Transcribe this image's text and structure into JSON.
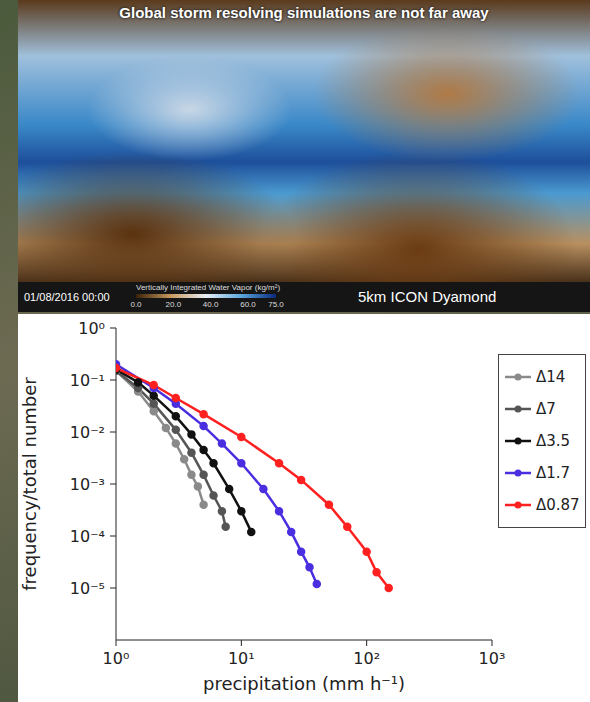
{
  "image_panel": {
    "title": "Global storm resolving simulations are not far away",
    "timestamp": "01/08/2016 00:00",
    "colorbar_label": "Vertically Integrated Water Vapor (kg/m²)",
    "colorbar_range": [
      0,
      75
    ],
    "colorbar_ticks": [
      {
        "value": 0,
        "label": "0.0"
      },
      {
        "value": 20,
        "label": "20.0"
      },
      {
        "value": 40,
        "label": "40.0"
      },
      {
        "value": 60,
        "label": "60.0"
      },
      {
        "value": 75,
        "label": "75.0"
      }
    ],
    "caption": "5km ICON Dyamond"
  },
  "chart_data": {
    "type": "line",
    "log": true,
    "marker": "circle",
    "legend": "right",
    "xlabel": "precipitation (mm h⁻¹)",
    "ylabel": "frequency/total number",
    "xlim": [
      1,
      1000
    ],
    "ylim": [
      1e-06,
      1
    ],
    "xticks": [
      {
        "value": 1,
        "label": "10⁰"
      },
      {
        "value": 10,
        "label": "10¹"
      },
      {
        "value": 100,
        "label": "10²"
      },
      {
        "value": 1000,
        "label": "10³"
      }
    ],
    "yticks": [
      {
        "value": 1e-05,
        "label": "10⁻⁵"
      },
      {
        "value": 0.0001,
        "label": "10⁻⁴"
      },
      {
        "value": 0.001,
        "label": "10⁻³"
      },
      {
        "value": 0.01,
        "label": "10⁻²"
      },
      {
        "value": 0.1,
        "label": "10⁻¹"
      },
      {
        "value": 1,
        "label": "10⁰"
      }
    ],
    "series": [
      {
        "name": "Δ14",
        "color": "#8a8a8a",
        "x": [
          1,
          1.5,
          2,
          2.5,
          3,
          3.5,
          4,
          4.5,
          5
        ],
        "values": [
          0.15,
          0.06,
          0.025,
          0.012,
          0.006,
          0.003,
          0.0015,
          0.0009,
          0.0004
        ]
      },
      {
        "name": "Δ7",
        "color": "#555555",
        "x": [
          1,
          1.5,
          2,
          3,
          4,
          5,
          6,
          7,
          7.5
        ],
        "values": [
          0.15,
          0.07,
          0.035,
          0.011,
          0.004,
          0.0015,
          0.0006,
          0.0003,
          0.00015
        ]
      },
      {
        "name": "Δ3.5",
        "color": "#111111",
        "x": [
          1,
          1.5,
          2,
          3,
          4,
          5,
          6,
          8,
          10,
          12
        ],
        "values": [
          0.16,
          0.09,
          0.05,
          0.02,
          0.009,
          0.0045,
          0.0025,
          0.0008,
          0.0003,
          0.00012
        ]
      },
      {
        "name": "Δ1.7",
        "color": "#4a2fe0",
        "x": [
          1,
          2,
          3,
          5,
          7,
          10,
          15,
          20,
          25,
          30,
          35,
          40
        ],
        "values": [
          0.2,
          0.07,
          0.035,
          0.013,
          0.006,
          0.0025,
          0.0008,
          0.0003,
          0.00012,
          5e-05,
          2.5e-05,
          1.2e-05
        ]
      },
      {
        "name": "Δ0.87",
        "color": "#ff2020",
        "x": [
          1,
          2,
          3,
          5,
          10,
          20,
          30,
          50,
          70,
          100,
          120,
          150
        ],
        "values": [
          0.17,
          0.08,
          0.045,
          0.022,
          0.008,
          0.0025,
          0.0012,
          0.0004,
          0.00015,
          5e-05,
          2e-05,
          1e-05
        ]
      }
    ]
  }
}
